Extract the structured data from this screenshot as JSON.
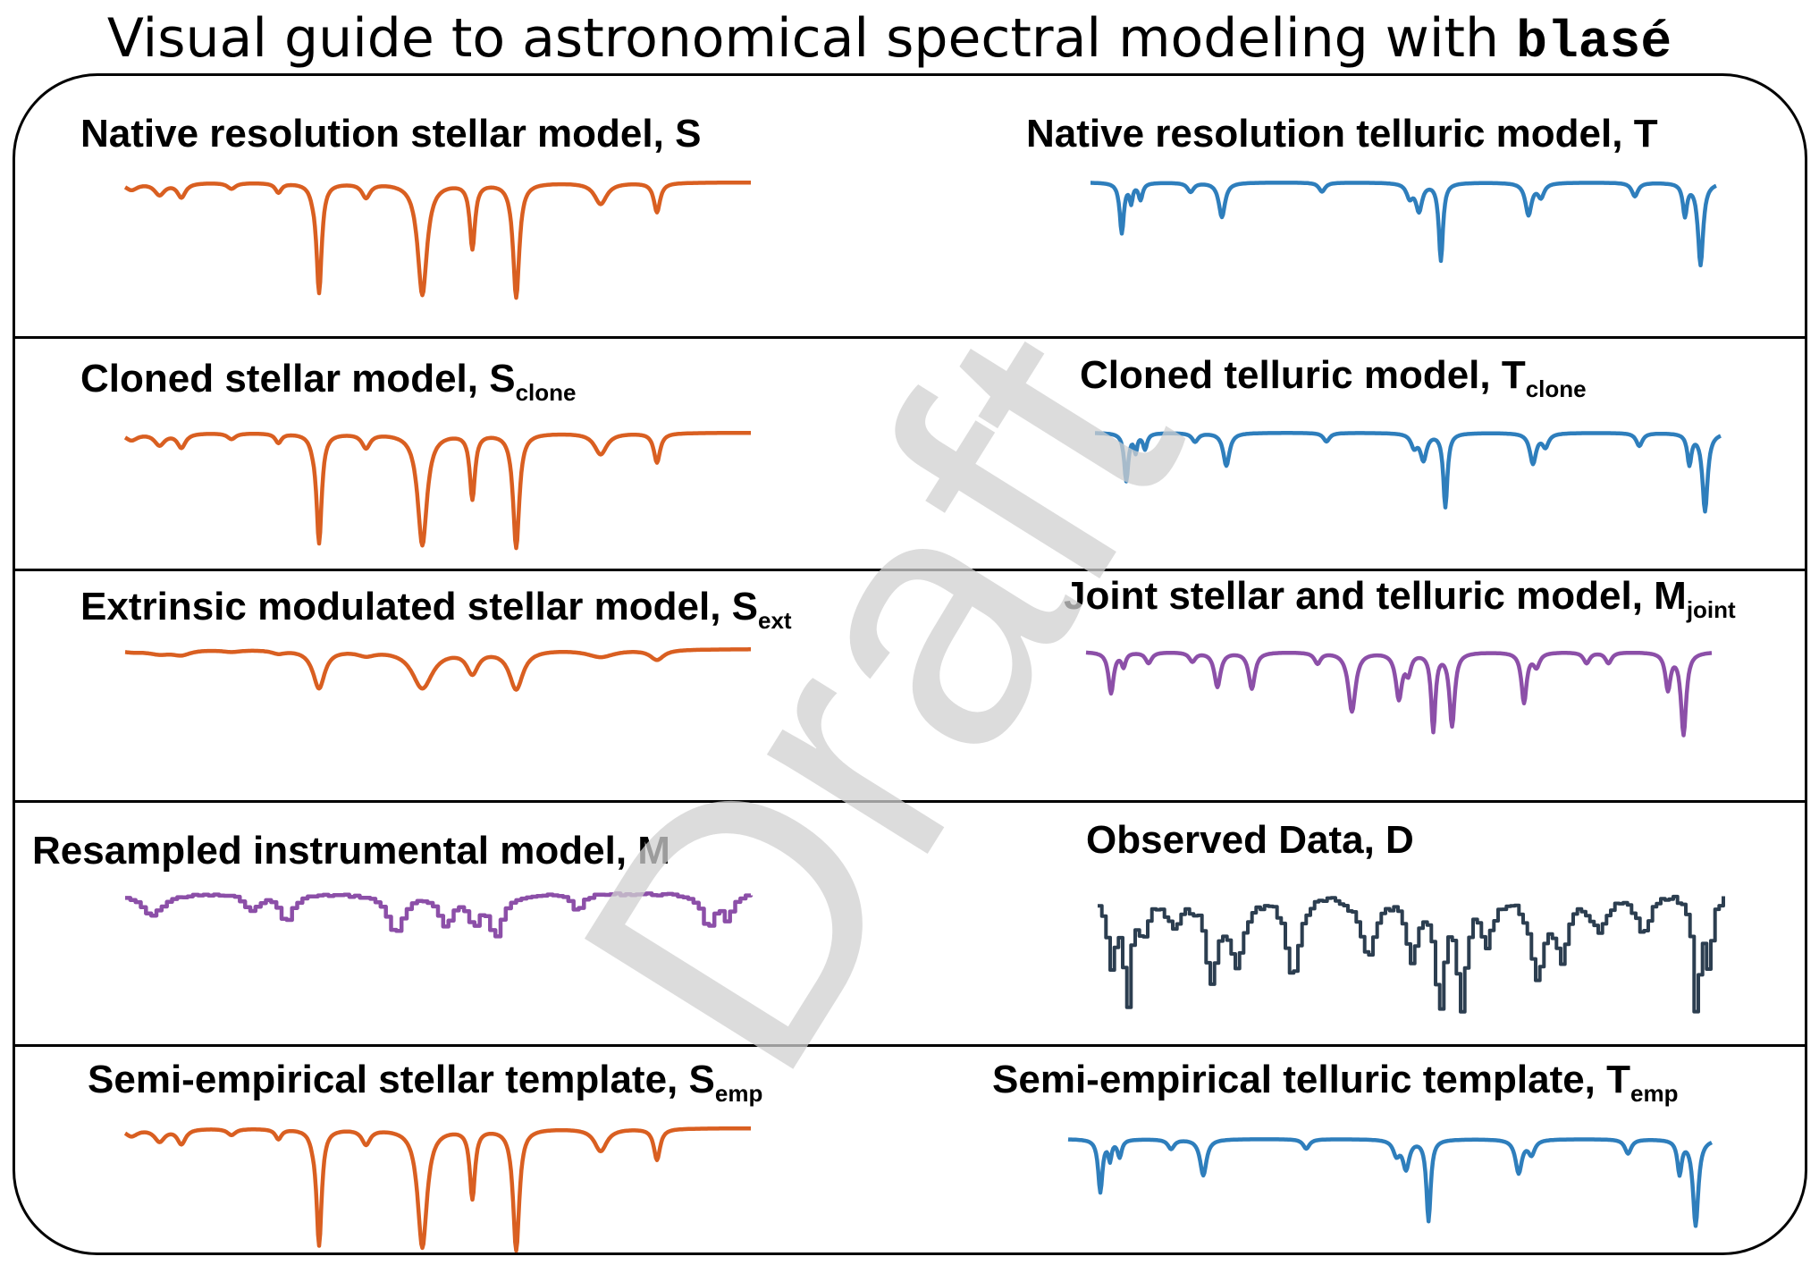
{
  "title": {
    "text": "Visual guide to astronomical spectral modeling with ",
    "code": "blasé"
  },
  "watermark": "Draft",
  "colors": {
    "stellar": "#d95f21",
    "telluric": "#2e7ebc",
    "joint": "#8c4fa8",
    "data": "#2c3e50",
    "watermark": "#d0d0d0"
  },
  "panels": [
    {
      "text": "Native resolution stellar model, S",
      "sub": "",
      "kind": "stellar"
    },
    {
      "text": "Native resolution telluric model, T",
      "sub": "",
      "kind": "telluric"
    },
    {
      "text": "Cloned stellar model, S",
      "sub": "clone",
      "kind": "stellar"
    },
    {
      "text": "Cloned telluric model, T",
      "sub": "clone",
      "kind": "telluric"
    },
    {
      "text": "Extrinsic modulated stellar model, S",
      "sub": "ext",
      "kind": "stellar-ext"
    },
    {
      "text": "Joint stellar and telluric model, M",
      "sub": "joint",
      "kind": "joint"
    },
    {
      "text": "Resampled instrumental model, M",
      "sub": "",
      "kind": "resampled"
    },
    {
      "text": "Observed Data, D",
      "sub": "",
      "kind": "data"
    },
    {
      "text": "Semi-empirical stellar template, S",
      "sub": "emp",
      "kind": "stellar"
    },
    {
      "text": "Semi-empirical telluric template, T",
      "sub": "emp",
      "kind": "telluric"
    }
  ]
}
